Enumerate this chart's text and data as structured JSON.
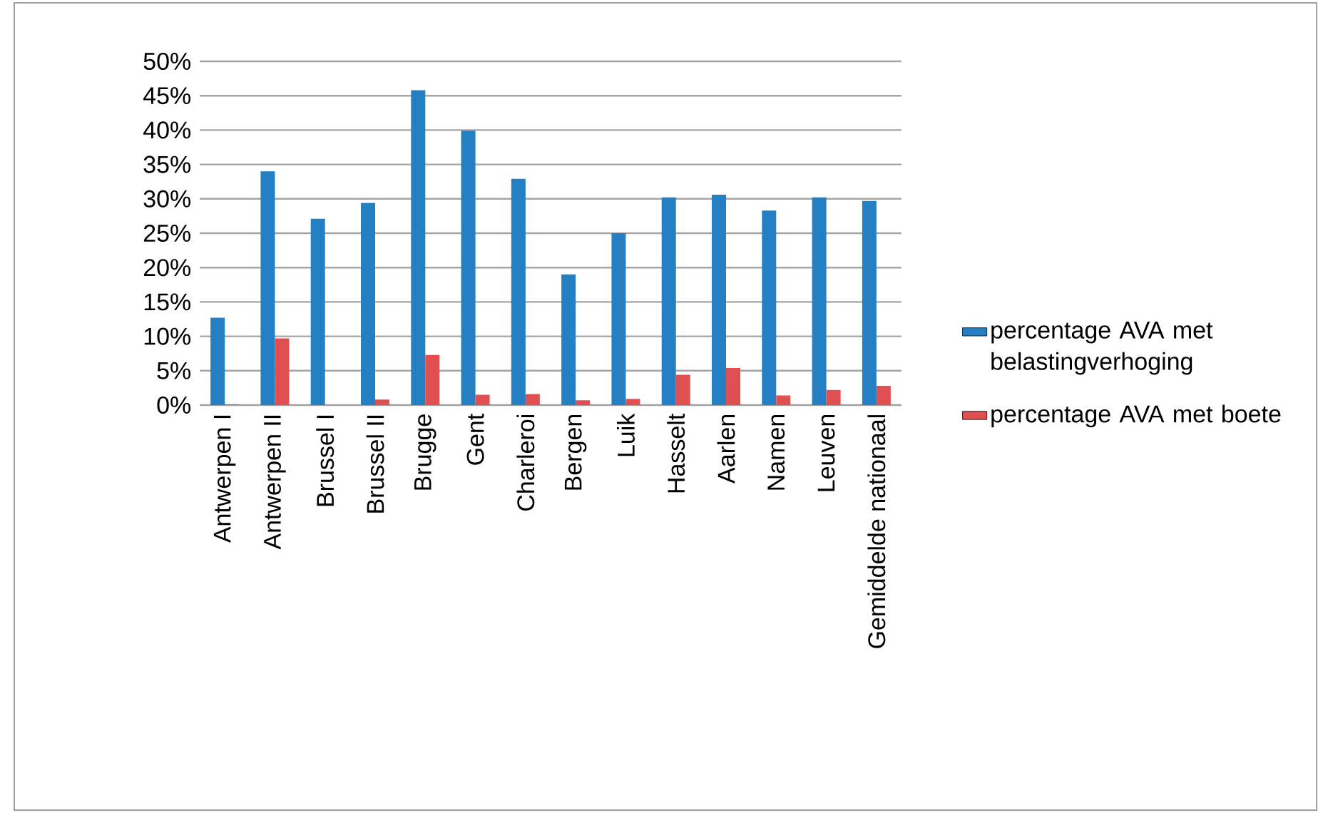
{
  "chart_data": {
    "type": "bar",
    "categories": [
      "Antwerpen I",
      "Antwerpen II",
      "Brussel I",
      "Brussel II",
      "Brugge",
      "Gent",
      "Charleroi",
      "Bergen",
      "Luik",
      "Hasselt",
      "Aarlen",
      "Namen",
      "Leuven",
      "Gemiddelde nationaal"
    ],
    "series": [
      {
        "name": "percentage AVA met belastingverhoging",
        "color": "#2580c3",
        "values": [
          12.7,
          34.0,
          27.1,
          29.4,
          45.8,
          39.9,
          32.9,
          19.0,
          25.0,
          30.2,
          30.6,
          28.3,
          30.2,
          29.7
        ]
      },
      {
        "name": "percentage AVA met boete",
        "color": "#e05050",
        "values": [
          0.1,
          9.7,
          0,
          0.8,
          7.3,
          1.5,
          1.6,
          0.7,
          0.9,
          4.4,
          5.4,
          1.4,
          2.2,
          2.8
        ]
      }
    ],
    "ylim": [
      0,
      50
    ],
    "yticks": [
      {
        "value": 0,
        "label": "0%"
      },
      {
        "value": 5,
        "label": "5%"
      },
      {
        "value": 10,
        "label": "10%"
      },
      {
        "value": 15,
        "label": "15%"
      },
      {
        "value": 20,
        "label": "20%"
      },
      {
        "value": 25,
        "label": "25%"
      },
      {
        "value": 30,
        "label": "30%"
      },
      {
        "value": 35,
        "label": "35%"
      },
      {
        "value": 40,
        "label": "40%"
      },
      {
        "value": 45,
        "label": "45%"
      },
      {
        "value": 50,
        "label": "50%"
      }
    ],
    "grid": "y",
    "legend": "right"
  }
}
